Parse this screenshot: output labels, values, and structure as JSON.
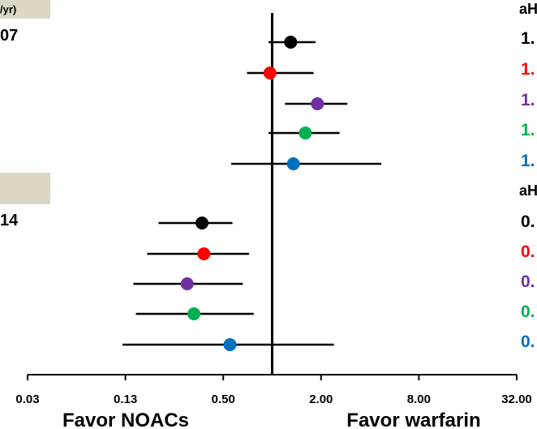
{
  "left_labels": {
    "header_fragment": "/yr)",
    "group1_value_fragment": "07",
    "group2_value_fragment": "14"
  },
  "right_labels": {
    "group1_header_fragment": "aH",
    "group1_values": [
      "1.",
      "1.",
      "1.",
      "1.",
      "1."
    ],
    "group2_header_fragment": "aH",
    "group2_values": [
      "0.",
      "0.",
      "0.",
      "0.",
      "0."
    ]
  },
  "colors": {
    "background": "#ffffff",
    "band": "#dcd7c3",
    "series": [
      "#000000",
      "#ff0000",
      "#7030a0",
      "#00b050",
      "#0070c0"
    ]
  },
  "chart_data": {
    "type": "forest",
    "x_scale": "log2",
    "xlim": [
      0.03,
      32.0
    ],
    "x_ticks": [
      "0.03",
      "0.13",
      "0.50",
      "2.00",
      "8.00",
      "32.00"
    ],
    "x_tick_values": [
      0.03125,
      0.125,
      0.5,
      2.0,
      8.0,
      32.0
    ],
    "reference_line": 1.0,
    "favor_left_label": "Favor NOACs",
    "favor_right_label": "Favor warfarin",
    "groups": [
      {
        "rows": [
          {
            "color": "#000000",
            "est": 1.3,
            "lo": 0.95,
            "hi": 1.85
          },
          {
            "color": "#ff0000",
            "est": 0.97,
            "lo": 0.7,
            "hi": 1.8
          },
          {
            "color": "#7030a0",
            "est": 1.9,
            "lo": 1.2,
            "hi": 2.9
          },
          {
            "color": "#00b050",
            "est": 1.6,
            "lo": 0.95,
            "hi": 2.6
          },
          {
            "color": "#0070c0",
            "est": 1.35,
            "lo": 0.56,
            "hi": 4.7
          }
        ]
      },
      {
        "rows": [
          {
            "color": "#000000",
            "est": 0.37,
            "lo": 0.2,
            "hi": 0.57
          },
          {
            "color": "#ff0000",
            "est": 0.38,
            "lo": 0.17,
            "hi": 0.72
          },
          {
            "color": "#7030a0",
            "est": 0.3,
            "lo": 0.14,
            "hi": 0.66
          },
          {
            "color": "#00b050",
            "est": 0.33,
            "lo": 0.145,
            "hi": 0.77
          },
          {
            "color": "#0070c0",
            "est": 0.55,
            "lo": 0.12,
            "hi": 2.4
          }
        ]
      }
    ]
  }
}
